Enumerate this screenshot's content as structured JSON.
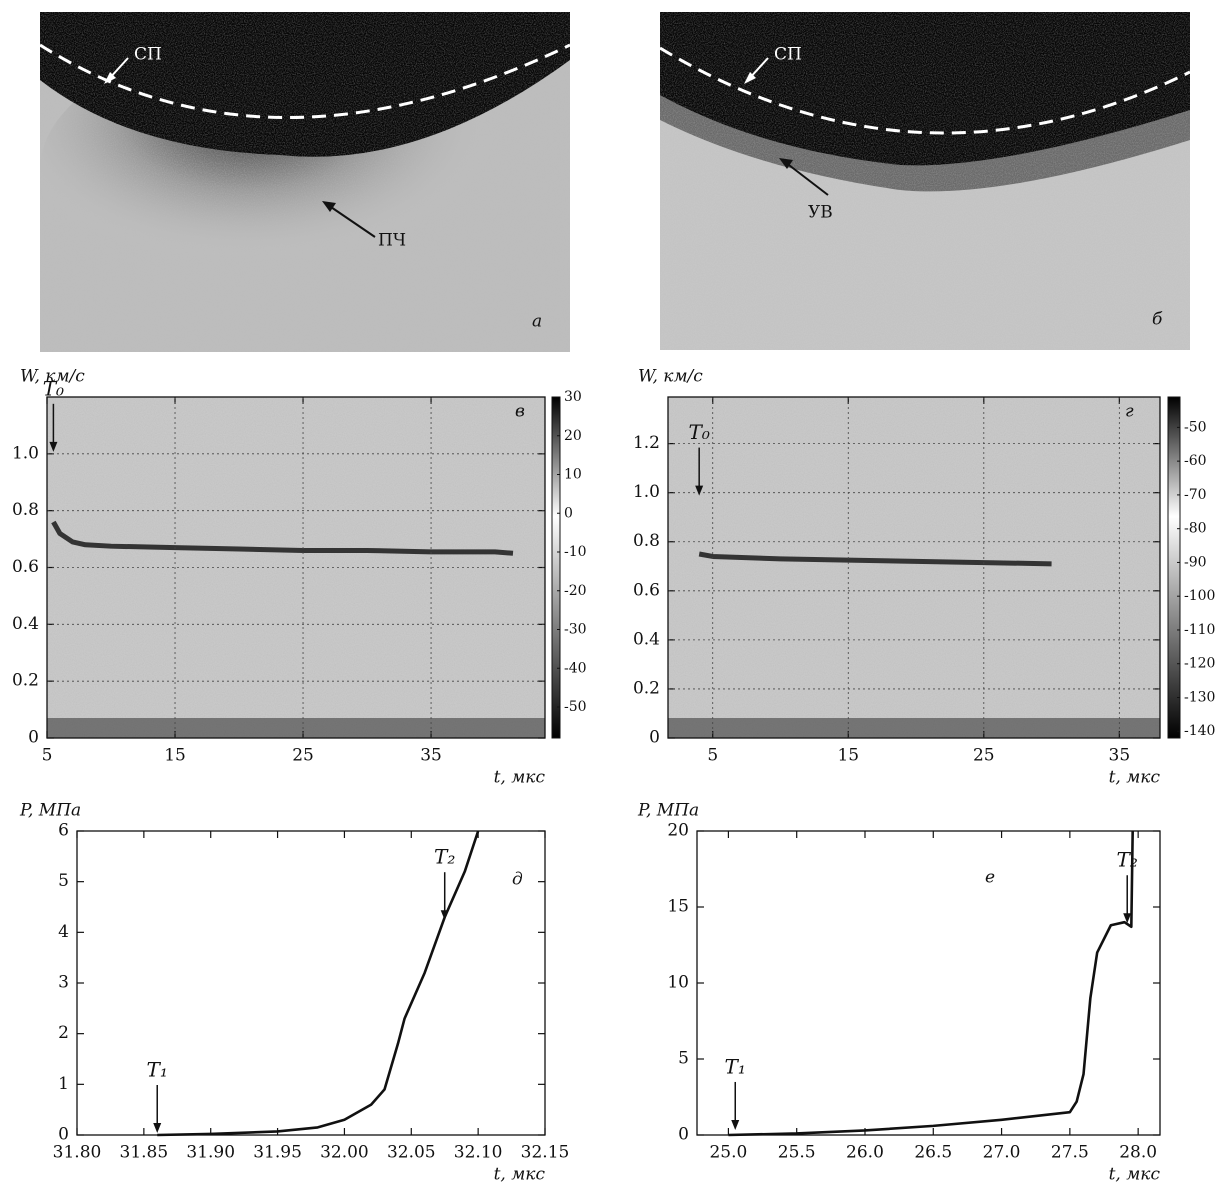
{
  "images": [
    {
      "label": "а",
      "annotations": [
        "СП",
        "ПЧ"
      ]
    },
    {
      "label": "б",
      "annotations": [
        "СП",
        "УВ"
      ]
    }
  ],
  "chart_data": [
    {
      "type": "spectrogram",
      "label": "в",
      "ylabel": "W, км/с",
      "xlabel": "t, мкс",
      "xlim": [
        5,
        43.9
      ],
      "ylim": [
        0,
        1.2
      ],
      "xticks": [
        5,
        15,
        25,
        35
      ],
      "yticks": [
        0,
        0.2,
        0.4,
        0.6,
        0.8,
        {
          "value": 1,
          "label": "1.0"
        }
      ],
      "grid": true,
      "x": [
        5.5,
        6,
        7,
        8,
        10,
        15,
        20,
        25,
        30,
        35,
        40,
        41.4
      ],
      "values": [
        0.76,
        0.72,
        0.69,
        0.68,
        0.675,
        0.67,
        0.665,
        0.66,
        0.66,
        0.655,
        0.655,
        0.65
      ],
      "annotations": [
        {
          "text": "T₀",
          "x": 5.5,
          "y": 1.0
        }
      ],
      "colorbar": {
        "lim": [
          -58,
          30
        ],
        "ticks": [
          30,
          20,
          10,
          0,
          -10,
          -20,
          -30,
          -40,
          -50
        ]
      }
    },
    {
      "type": "spectrogram",
      "label": "г",
      "ylabel": "W, км/с",
      "xlabel": "t, мкс",
      "xlim": [
        1.7,
        38
      ],
      "ylim": [
        0,
        1.39
      ],
      "xticks": [
        5,
        15,
        25,
        35
      ],
      "yticks": [
        0,
        0.2,
        0.4,
        0.6,
        0.8,
        {
          "value": 1,
          "label": "1.0"
        },
        1.2
      ],
      "grid": true,
      "x": [
        4,
        5,
        10,
        15,
        20,
        25,
        30
      ],
      "values": [
        0.75,
        0.74,
        0.73,
        0.725,
        0.72,
        0.715,
        0.71
      ],
      "annotations": [
        {
          "text": "T₀",
          "x": 4,
          "y": 0.98
        }
      ],
      "colorbar": {
        "lim": [
          -142,
          -41
        ],
        "ticks": [
          -50,
          -60,
          -70,
          -80,
          -90,
          -100,
          -110,
          -120,
          -130,
          -140
        ]
      }
    },
    {
      "type": "line",
      "label": "д",
      "ylabel": "P, МПа",
      "xlabel": "t, мкс",
      "xlim": [
        31.8,
        32.15
      ],
      "ylim": [
        0,
        6
      ],
      "xticks": [
        {
          "value": 31.8,
          "label": "31.80"
        },
        31.85,
        {
          "value": 31.9,
          "label": "31.90"
        },
        31.95,
        {
          "value": 32,
          "label": "32.00"
        },
        32.05,
        {
          "value": 32.1,
          "label": "32.10"
        },
        32.15
      ],
      "yticks": [
        0,
        1,
        2,
        3,
        4,
        5,
        6
      ],
      "x": [
        31.86,
        31.9,
        31.95,
        31.98,
        32.0,
        32.02,
        32.03,
        32.04,
        32.045,
        32.06,
        32.075,
        32.09,
        32.1
      ],
      "values": [
        0,
        0.02,
        0.07,
        0.15,
        0.3,
        0.6,
        0.9,
        1.8,
        2.3,
        3.2,
        4.3,
        5.2,
        6
      ],
      "annotations": [
        {
          "text": "T₁",
          "x": 31.86,
          "y": 0
        },
        {
          "text": "T₂",
          "x": 32.075,
          "y": 4.2
        }
      ]
    },
    {
      "type": "line",
      "label": "е",
      "ylabel": "P, МПа",
      "xlabel": "t, мкс",
      "xlim": [
        24.77,
        28.16
      ],
      "ylim": [
        0,
        20
      ],
      "xticks": [
        {
          "value": 25,
          "label": "25.0"
        },
        25.5,
        {
          "value": 26,
          "label": "26.0"
        },
        26.5,
        {
          "value": 27,
          "label": "27.0"
        },
        27.5,
        {
          "value": 28,
          "label": "28.0"
        }
      ],
      "yticks": [
        0,
        5,
        10,
        15,
        20
      ],
      "x": [
        25.0,
        25.5,
        26.0,
        26.5,
        27.0,
        27.5,
        27.55,
        27.6,
        27.65,
        27.7,
        27.8,
        27.9,
        27.95,
        27.96
      ],
      "values": [
        0,
        0.1,
        0.3,
        0.6,
        1.0,
        1.5,
        2.2,
        4,
        9,
        12,
        13.8,
        14,
        13.7,
        20
      ],
      "annotations": [
        {
          "text": "T₁",
          "x": 25.05,
          "y": 0.2
        },
        {
          "text": "T₂",
          "x": 27.92,
          "y": 13.8
        }
      ]
    }
  ]
}
